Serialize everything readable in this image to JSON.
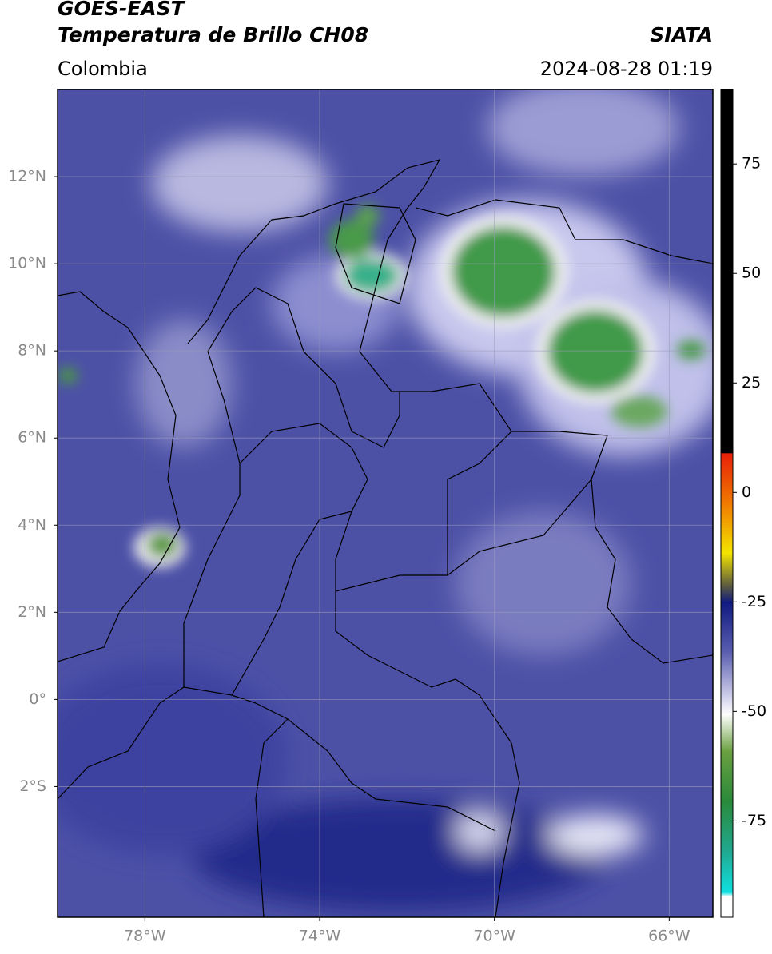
{
  "header": {
    "title": "GOES-EAST",
    "subtitle": "Temperatura de Brillo CH08",
    "region": "Colombia",
    "source": "SIATA",
    "datetime": "2024-08-28 01:19"
  },
  "map": {
    "xlim": [
      -80,
      -65
    ],
    "ylim": [
      -5,
      14
    ],
    "xticks": [
      {
        "value": -78,
        "label": "78°W"
      },
      {
        "value": -74,
        "label": "74°W"
      },
      {
        "value": -70,
        "label": "70°W"
      },
      {
        "value": -66,
        "label": "66°W"
      }
    ],
    "yticks": [
      {
        "value": 12,
        "label": "12°N"
      },
      {
        "value": 10,
        "label": "10°N"
      },
      {
        "value": 8,
        "label": "8°N"
      },
      {
        "value": 6,
        "label": "6°N"
      },
      {
        "value": 4,
        "label": "4°N"
      },
      {
        "value": 2,
        "label": "2°N"
      },
      {
        "value": 0,
        "label": "0°"
      },
      {
        "value": -2,
        "label": "2°S"
      }
    ],
    "grid": true
  },
  "colorbar": {
    "lim": [
      -97,
      92
    ],
    "ticks": [
      75,
      50,
      25,
      0,
      -25,
      -50,
      -75
    ]
  }
}
